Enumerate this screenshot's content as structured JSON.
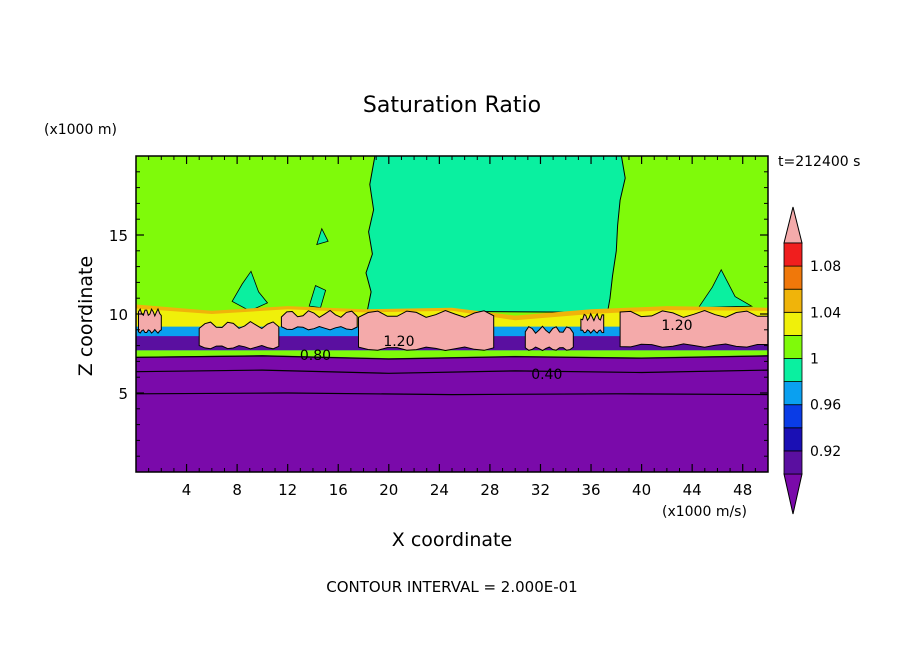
{
  "chart_data": {
    "type": "heatmap",
    "title": "Saturation Ratio",
    "xlabel": "X coordinate",
    "ylabel": "Z coordinate",
    "x_unit": "(x1000 m/s)",
    "y_unit": "(x1000 m)",
    "time_label": "t=212400 s",
    "footer": "CONTOUR INTERVAL = 2.000E-01",
    "xlim": [
      0,
      50
    ],
    "ylim": [
      0,
      20
    ],
    "x_ticks": [
      4,
      8,
      12,
      16,
      20,
      24,
      28,
      32,
      36,
      40,
      44,
      48
    ],
    "y_ticks": [
      5,
      10,
      15
    ],
    "colorbar": {
      "bounds": [
        0.9,
        0.92,
        0.94,
        0.96,
        0.98,
        1.0,
        1.02,
        1.04,
        1.06,
        1.08,
        1.1
      ],
      "labels": [
        {
          "value": 0.92,
          "text": "0.92"
        },
        {
          "value": 0.96,
          "text": "0.96"
        },
        {
          "value": 1.0,
          "text": "1"
        },
        {
          "value": 1.04,
          "text": "1.04"
        },
        {
          "value": 1.08,
          "text": "1.08"
        }
      ],
      "colors": [
        "#5a0fa0",
        "#1a0fb4",
        "#0a3ce6",
        "#0aa0f0",
        "#0af0a0",
        "#7ffa0a",
        "#f0f00a",
        "#f0b40a",
        "#f0780a",
        "#f01e1e"
      ],
      "under_color": "#7a0aaa",
      "over_color": "#f4aaaa"
    },
    "fields": {
      "upper_air_value": 1.01,
      "cloud_column_value": 0.99,
      "supersaturated_value": 1.2,
      "lower_air_value": 0.4
    },
    "contour_labels": [
      {
        "x": 20.8,
        "y": 8.3,
        "text": "1.20"
      },
      {
        "x": 42.8,
        "y": 9.3,
        "text": "1.20"
      },
      {
        "x": 14.2,
        "y": 7.4,
        "text": "0.80"
      },
      {
        "x": 32.5,
        "y": 6.2,
        "text": "0.40"
      }
    ],
    "supersaturated_bands": [
      {
        "x1": 0.2,
        "x2": 2.0,
        "bottom": 8.9,
        "top": 10.1
      },
      {
        "x1": 5.0,
        "x2": 11.3,
        "bottom": 7.9,
        "top": 9.3
      },
      {
        "x1": 11.5,
        "x2": 17.5,
        "bottom": 9.1,
        "top": 10.0
      },
      {
        "x1": 17.6,
        "x2": 28.3,
        "bottom": 7.8,
        "top": 10.0
      },
      {
        "x1": 30.8,
        "x2": 34.6,
        "bottom": 7.8,
        "top": 9.0
      },
      {
        "x1": 35.2,
        "x2": 37.0,
        "bottom": 8.9,
        "top": 9.8
      },
      {
        "x1": 38.3,
        "x2": 50.0,
        "bottom": 8.0,
        "top": 10.0
      }
    ]
  }
}
